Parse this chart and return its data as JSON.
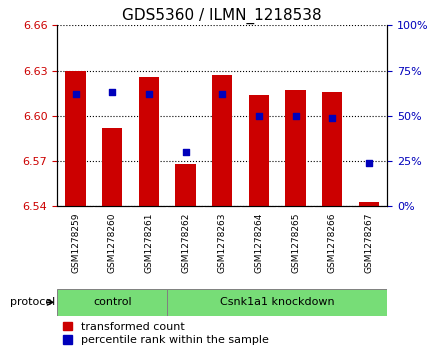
{
  "title": "GDS5360 / ILMN_1218538",
  "samples": [
    "GSM1278259",
    "GSM1278260",
    "GSM1278261",
    "GSM1278262",
    "GSM1278263",
    "GSM1278264",
    "GSM1278265",
    "GSM1278266",
    "GSM1278267"
  ],
  "bar_values": [
    6.63,
    6.592,
    6.626,
    6.568,
    6.627,
    6.614,
    6.617,
    6.616,
    6.543
  ],
  "percentile_values": [
    62,
    63,
    62,
    30,
    62,
    50,
    50,
    49,
    24
  ],
  "ylim_left": [
    6.54,
    6.66
  ],
  "ylim_right": [
    0,
    100
  ],
  "yticks_left": [
    6.54,
    6.57,
    6.6,
    6.63,
    6.66
  ],
  "yticks_right": [
    0,
    25,
    50,
    75,
    100
  ],
  "bar_color": "#cc0000",
  "dot_color": "#0000bb",
  "bar_bottom": 6.54,
  "ctrl_count": 3,
  "protocol_label": "protocol",
  "left_tick_color": "#cc0000",
  "right_tick_color": "#0000bb",
  "xlabels_bg": "#d3d3d3",
  "proto_color": "#77dd77",
  "plot_bg_color": "#ffffff",
  "title_fontsize": 11,
  "tick_fontsize": 8,
  "label_fontsize": 8,
  "legend_fontsize": 8
}
